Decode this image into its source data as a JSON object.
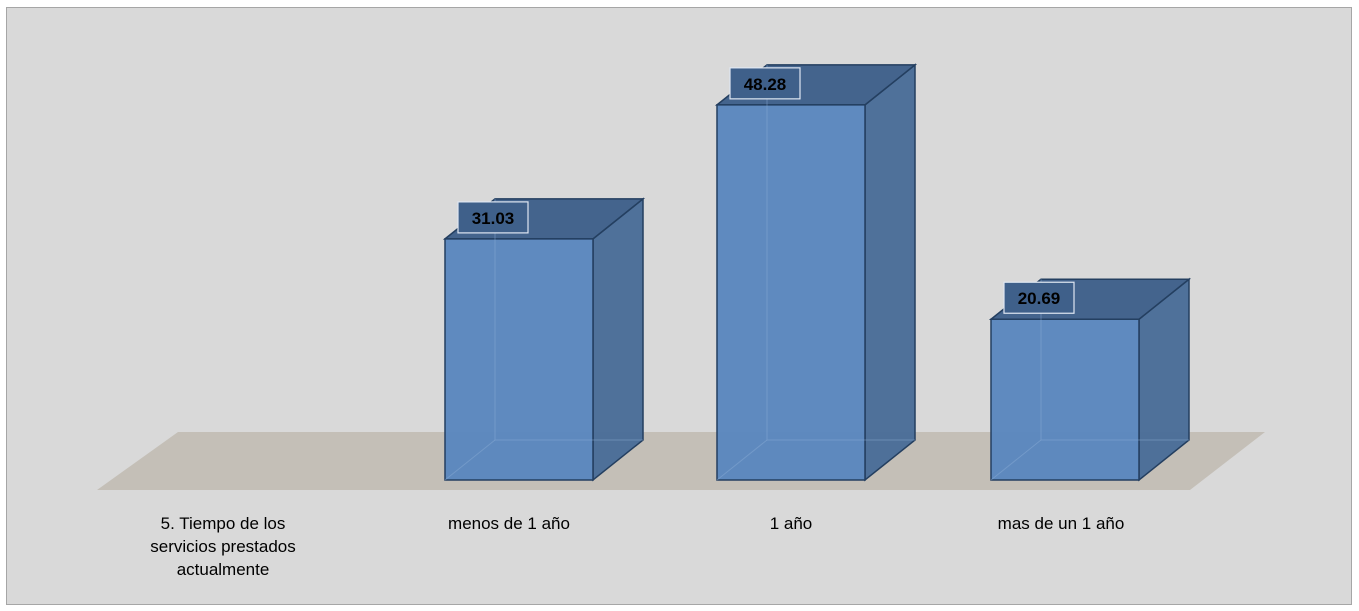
{
  "chart_data": {
    "type": "bar",
    "style": "3d-column",
    "categories": [
      [
        "5.    Tiempo de los",
        "servicios prestados",
        "actualmente"
      ],
      [
        "menos de 1 año"
      ],
      [
        "1 año"
      ],
      [
        "mas de un 1 año"
      ]
    ],
    "values": [
      null,
      31.03,
      48.28,
      20.69
    ],
    "data_labels": [
      "",
      "31.03",
      "48.28",
      "20.69"
    ],
    "title": "",
    "xlabel": "",
    "ylabel": "",
    "ylim": [
      0,
      50
    ],
    "grid": false,
    "legend": "none"
  },
  "colors": {
    "background": "#d9d9d9",
    "floor": "#c4bfb7",
    "bar_front": "#5b87be",
    "bar_side": "#4a6d98",
    "bar_top": "#3f608a",
    "bar_edge": "#243f60"
  }
}
